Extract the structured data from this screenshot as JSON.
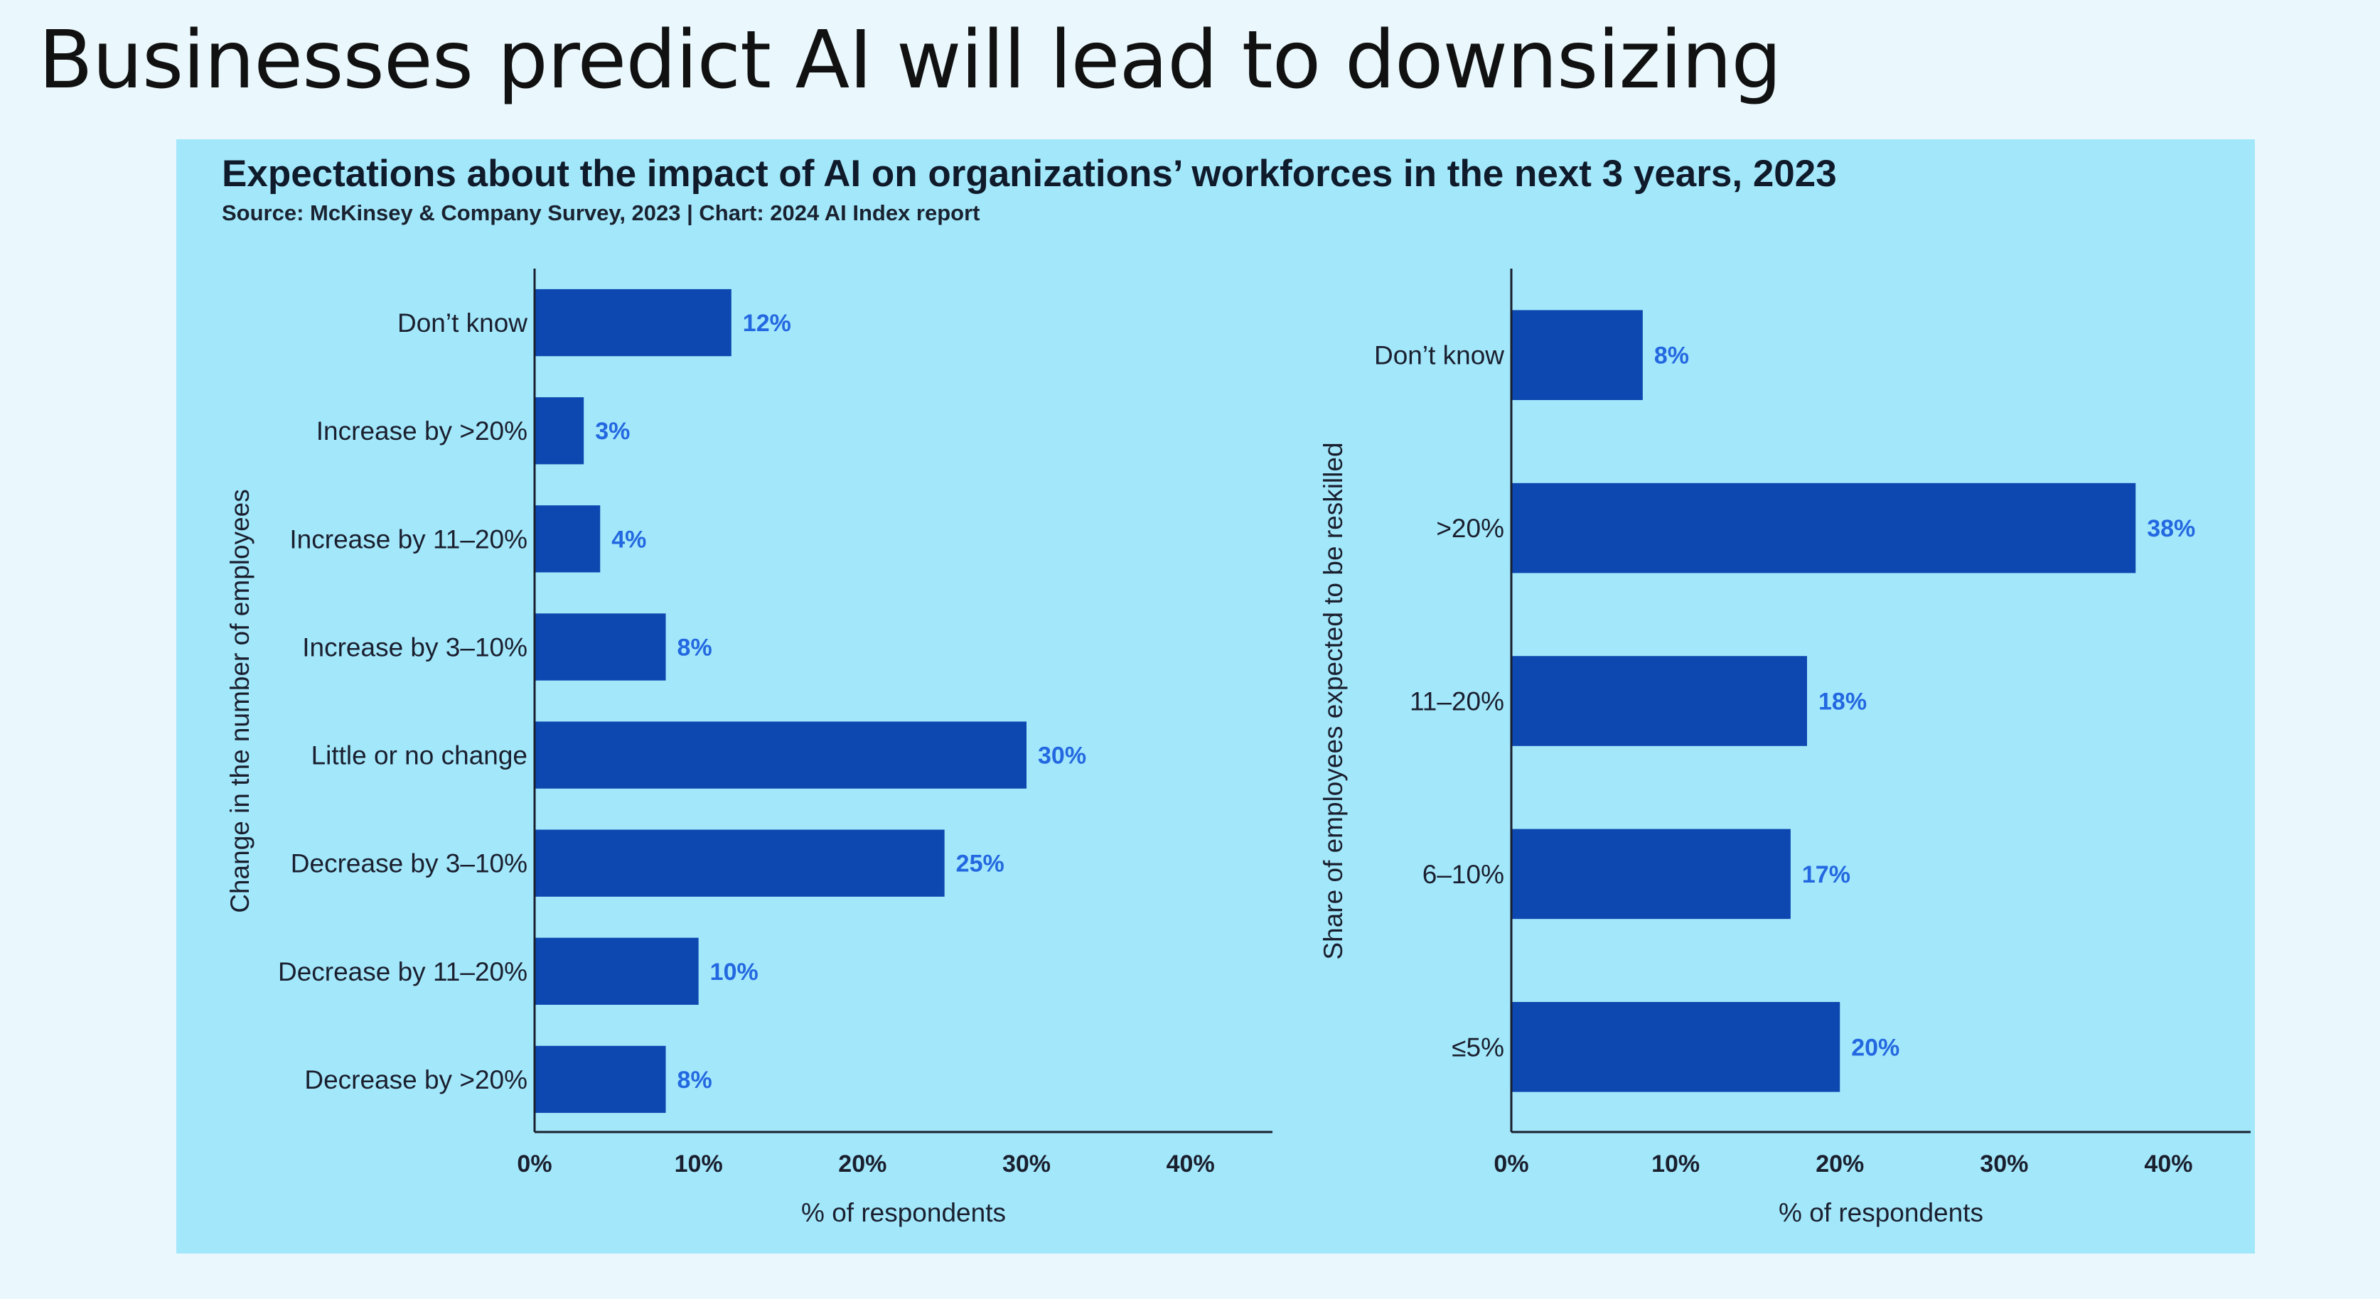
{
  "slide": {
    "title": "Businesses predict AI will lead to downsizing"
  },
  "figure": {
    "title": "Expectations about the impact of AI on organizations’ workforces in the next 3 years, 2023",
    "source": "Source: McKinsey & Company Survey, 2023 | Chart: 2024 AI Index report"
  },
  "colors": {
    "bar": "#0d47b0",
    "value_label": "#2368e0",
    "panel": "#a3e7fb",
    "background": "#eaf8fd"
  },
  "chart_data": [
    {
      "type": "bar",
      "orientation": "horizontal",
      "categories": [
        "Don’t know",
        "Increase by >20%",
        "Increase by 11–20%",
        "Increase by 3–10%",
        "Little or no change",
        "Decrease by 3–10%",
        "Decrease by 11–20%",
        "Decrease by >20%"
      ],
      "values": [
        12,
        3,
        4,
        8,
        30,
        25,
        10,
        8
      ],
      "value_labels": [
        "12%",
        "3%",
        "4%",
        "8%",
        "30%",
        "25%",
        "10%",
        "8%"
      ],
      "xlabel": "% of respondents",
      "ylabel": "Change in the number of employees",
      "xlim": [
        0,
        45
      ],
      "xticks": [
        0,
        10,
        20,
        30,
        40
      ],
      "xtick_labels": [
        "0%",
        "10%",
        "20%",
        "30%",
        "40%"
      ],
      "grid": false
    },
    {
      "type": "bar",
      "orientation": "horizontal",
      "categories": [
        "Don’t know",
        ">20%",
        "11–20%",
        "6–10%",
        "≤5%"
      ],
      "values": [
        8,
        38,
        18,
        17,
        20
      ],
      "value_labels": [
        "8%",
        "38%",
        "18%",
        "17%",
        "20%"
      ],
      "xlabel": "% of respondents",
      "ylabel": "Share of employees expected to be reskilled",
      "xlim": [
        0,
        45
      ],
      "xticks": [
        0,
        10,
        20,
        30,
        40
      ],
      "xtick_labels": [
        "0%",
        "10%",
        "20%",
        "30%",
        "40%"
      ],
      "grid": false
    }
  ]
}
